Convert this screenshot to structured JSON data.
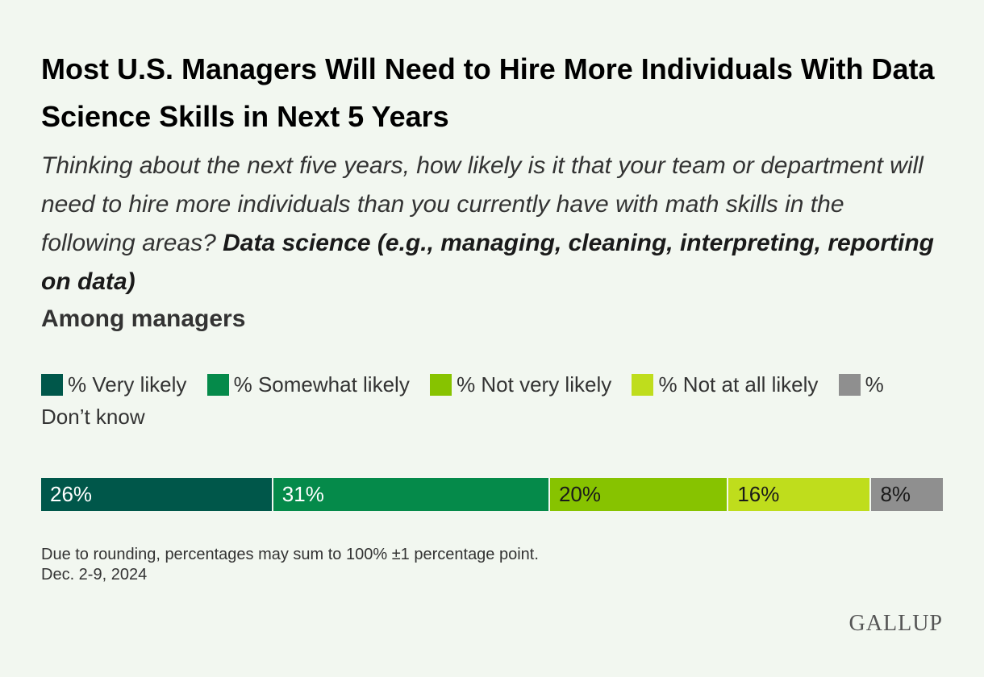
{
  "chart_data": {
    "type": "bar",
    "stacked": true,
    "orientation": "horizontal",
    "title": "Most U.S. Managers Will Need to Hire More Individuals With Data Science Skills in Next 5 Years",
    "subtitle": "Thinking about the next five years, how likely is it that your team or department will need to hire more individuals than you currently have with math skills in the following areas?",
    "subtitle_bold": "Data science (e.g., managing, cleaning, interpreting, reporting on data)",
    "group_label": "Among managers",
    "legend_placement": "top",
    "series": [
      {
        "name": "% Very likely",
        "value": 26,
        "label": "26%",
        "color": "#00574a",
        "text_color": "#ffffff"
      },
      {
        "name": "% Somewhat likely",
        "value": 31,
        "label": "31%",
        "color": "#058a4a",
        "text_color": "#ffffff"
      },
      {
        "name": "% Not very likely",
        "value": 20,
        "label": "20%",
        "color": "#87c300",
        "text_color": "#1a1a1a"
      },
      {
        "name": "% Not at all likely",
        "value": 16,
        "label": "16%",
        "color": "#bfdd1c",
        "text_color": "#1a1a1a"
      },
      {
        "name": "% Don’t know",
        "value": 8,
        "label": "8%",
        "color": "#8f8f8f",
        "text_color": "#1a1a1a"
      }
    ]
  },
  "footnote": "Due to rounding, percentages may sum to 100% ±1 percentage point.",
  "date": "Dec. 2-9, 2024",
  "brand": "GALLUP"
}
